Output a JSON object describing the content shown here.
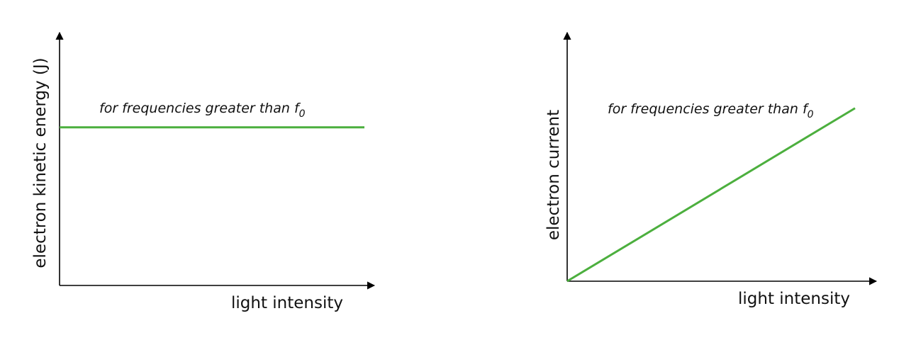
{
  "chart_data": [
    {
      "type": "line",
      "xlabel": "light intensity",
      "ylabel": "electron kinetic energy (J)",
      "annotation": {
        "text": "for frequencies greater than f",
        "subscript": "0"
      },
      "xlim": [
        0,
        1
      ],
      "ylim": [
        0,
        1
      ],
      "grid": false,
      "series": [
        {
          "x": [
            0,
            1
          ],
          "y": [
            0.62,
            0.62
          ],
          "color": "#4caf3e"
        }
      ]
    },
    {
      "type": "line",
      "xlabel": "light intensity",
      "ylabel": "electron current",
      "annotation": {
        "text": "for frequencies greater than f",
        "subscript": "0"
      },
      "xlim": [
        0,
        1
      ],
      "ylim": [
        0,
        1
      ],
      "grid": false,
      "series": [
        {
          "x": [
            0,
            1
          ],
          "y": [
            0,
            0.69
          ],
          "color": "#4caf3e"
        }
      ]
    }
  ],
  "colors": {
    "axis": "#000000",
    "line": "#4caf3e"
  }
}
